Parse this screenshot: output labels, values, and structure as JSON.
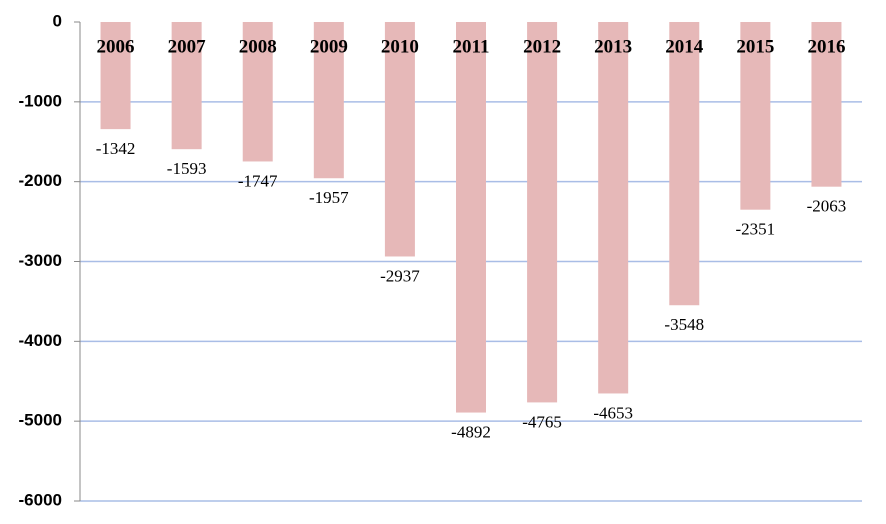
{
  "chart_data": {
    "type": "bar",
    "categories": [
      "2006",
      "2007",
      "2008",
      "2009",
      "2010",
      "2011",
      "2012",
      "2013",
      "2014",
      "2015",
      "2016"
    ],
    "values": [
      -1342,
      -1593,
      -1747,
      -1957,
      -2937,
      -4892,
      -4765,
      -4653,
      -3548,
      -2351,
      -2063
    ],
    "color": "#e6b8b8",
    "ylim": [
      -6000,
      0
    ],
    "yticks": [
      0,
      -1000,
      -2000,
      -3000,
      -4000,
      -5000,
      -6000
    ],
    "grid": true
  }
}
